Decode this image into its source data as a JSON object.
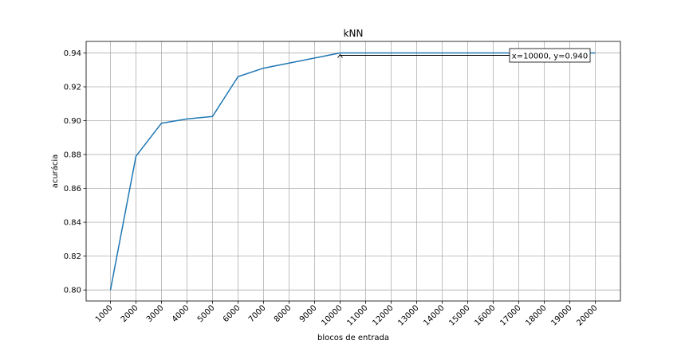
{
  "chart_data": {
    "type": "line",
    "title": "kNN",
    "xlabel": "blocos de entrada",
    "ylabel": "acurácia",
    "categories": [
      "1000",
      "2000",
      "3000",
      "4000",
      "5000",
      "6000",
      "7000",
      "8000",
      "9000",
      "10000",
      "11000",
      "12000",
      "13000",
      "14000",
      "15000",
      "16000",
      "17000",
      "18000",
      "19000",
      "20000"
    ],
    "y_ticks": [
      "0.80",
      "0.82",
      "0.84",
      "0.86",
      "0.88",
      "0.90",
      "0.92",
      "0.94"
    ],
    "ylim": [
      0.7935,
      0.9468
    ],
    "grid": true,
    "series": [
      {
        "values": [
          0.8,
          0.879,
          0.8985,
          0.901,
          0.9025,
          0.926,
          0.931,
          0.934,
          0.937,
          0.94,
          0.94,
          0.94,
          0.94,
          0.94,
          0.94,
          0.94,
          0.94,
          0.94,
          0.94,
          0.94
        ],
        "color": "#1f77b4"
      }
    ],
    "annotation": {
      "text": "x=10000, y=0.940",
      "target_index": 9,
      "target_value": 0.94
    }
  }
}
